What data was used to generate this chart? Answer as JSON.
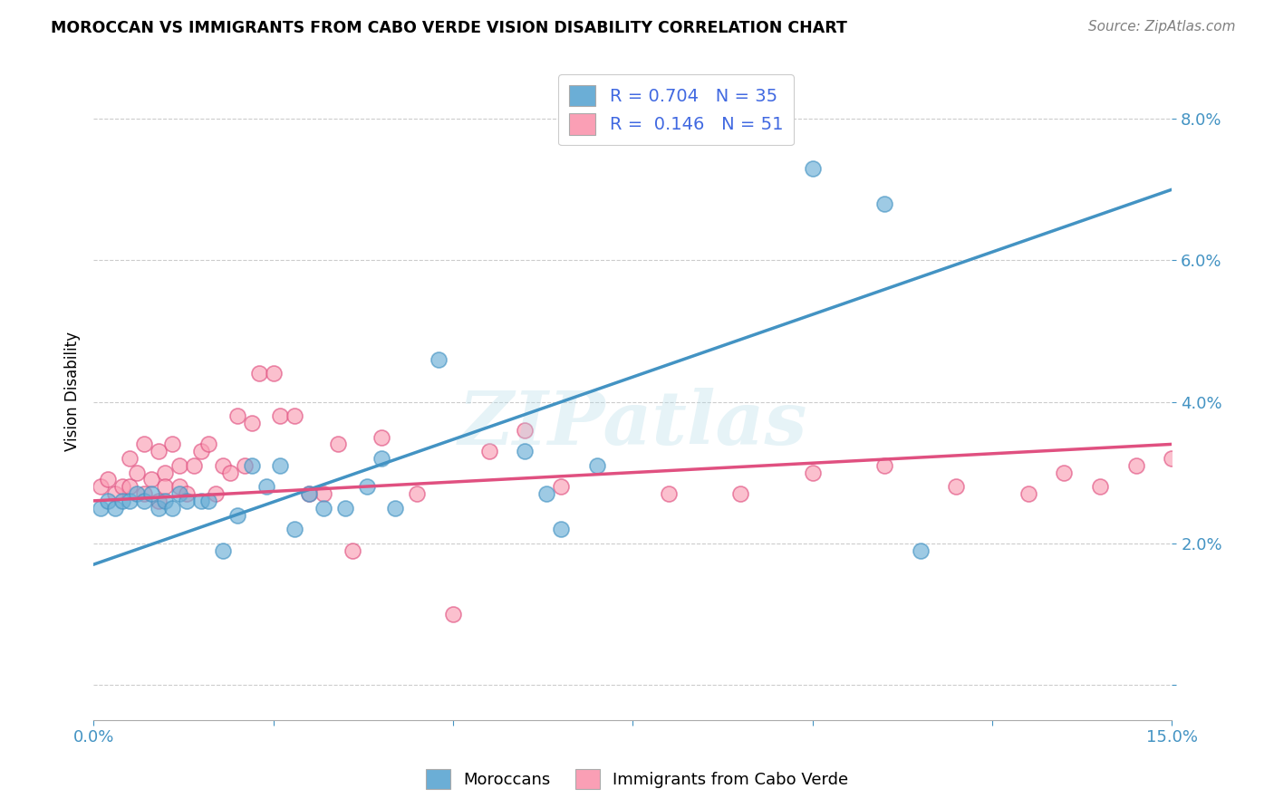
{
  "title": "MOROCCAN VS IMMIGRANTS FROM CABO VERDE VISION DISABILITY CORRELATION CHART",
  "source": "Source: ZipAtlas.com",
  "xlabel": "",
  "ylabel": "Vision Disability",
  "xlim": [
    0.0,
    0.15
  ],
  "ylim": [
    -0.005,
    0.088
  ],
  "blue_color": "#6baed6",
  "pink_color": "#fa9fb5",
  "blue_line_color": "#4393c3",
  "pink_line_color": "#e05080",
  "legend_R1": "0.704",
  "legend_N1": "35",
  "legend_R2": "0.146",
  "legend_N2": "51",
  "legend_text_color": "#4169e1",
  "watermark": "ZIPatlas",
  "blue_scatter_x": [
    0.001,
    0.002,
    0.003,
    0.004,
    0.005,
    0.006,
    0.007,
    0.008,
    0.009,
    0.01,
    0.011,
    0.012,
    0.013,
    0.015,
    0.016,
    0.018,
    0.02,
    0.022,
    0.024,
    0.026,
    0.028,
    0.03,
    0.032,
    0.035,
    0.038,
    0.04,
    0.042,
    0.048,
    0.06,
    0.063,
    0.065,
    0.07,
    0.1,
    0.11,
    0.115
  ],
  "blue_scatter_y": [
    0.025,
    0.026,
    0.025,
    0.026,
    0.026,
    0.027,
    0.026,
    0.027,
    0.025,
    0.026,
    0.025,
    0.027,
    0.026,
    0.026,
    0.026,
    0.019,
    0.024,
    0.031,
    0.028,
    0.031,
    0.022,
    0.027,
    0.025,
    0.025,
    0.028,
    0.032,
    0.025,
    0.046,
    0.033,
    0.027,
    0.022,
    0.031,
    0.073,
    0.068,
    0.019
  ],
  "pink_scatter_x": [
    0.001,
    0.002,
    0.003,
    0.004,
    0.005,
    0.005,
    0.006,
    0.007,
    0.007,
    0.008,
    0.009,
    0.009,
    0.01,
    0.01,
    0.011,
    0.012,
    0.012,
    0.013,
    0.014,
    0.015,
    0.016,
    0.017,
    0.018,
    0.019,
    0.02,
    0.021,
    0.022,
    0.023,
    0.025,
    0.026,
    0.028,
    0.03,
    0.032,
    0.034,
    0.036,
    0.04,
    0.045,
    0.05,
    0.055,
    0.06,
    0.065,
    0.08,
    0.09,
    0.1,
    0.11,
    0.12,
    0.13,
    0.135,
    0.14,
    0.145,
    0.15
  ],
  "pink_scatter_y": [
    0.028,
    0.029,
    0.027,
    0.028,
    0.032,
    0.028,
    0.03,
    0.034,
    0.027,
    0.029,
    0.033,
    0.026,
    0.03,
    0.028,
    0.034,
    0.031,
    0.028,
    0.027,
    0.031,
    0.033,
    0.034,
    0.027,
    0.031,
    0.03,
    0.038,
    0.031,
    0.037,
    0.044,
    0.044,
    0.038,
    0.038,
    0.027,
    0.027,
    0.034,
    0.019,
    0.035,
    0.027,
    0.01,
    0.033,
    0.036,
    0.028,
    0.027,
    0.027,
    0.03,
    0.031,
    0.028,
    0.027,
    0.03,
    0.028,
    0.031,
    0.032
  ],
  "blue_line_x0": 0.0,
  "blue_line_y0": 0.017,
  "blue_line_x1": 0.15,
  "blue_line_y1": 0.07,
  "pink_line_x0": 0.0,
  "pink_line_y0": 0.026,
  "pink_line_x1": 0.15,
  "pink_line_y1": 0.034
}
